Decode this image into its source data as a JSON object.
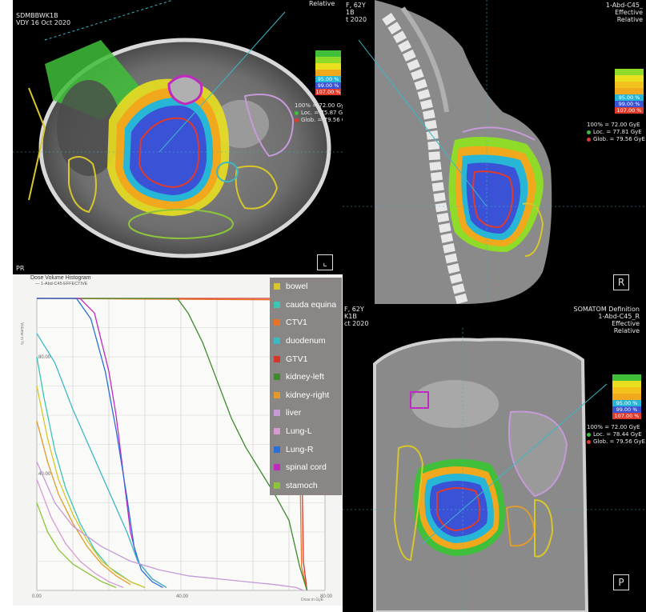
{
  "axial": {
    "overlay_lines": [
      "SDMBBWK1B",
      "VDY 16 Oct 2020"
    ],
    "orient_label": "PR",
    "top_text": "Relative",
    "dose_summary": [
      "100% = 72.00 GyE",
      "Loc. = 75.87 GyE",
      "Glob. = 79.56 GyE"
    ],
    "legend": [
      {
        "label": "",
        "color": "#3fbf3a"
      },
      {
        "label": "",
        "color": "#8edb2a"
      },
      {
        "label": "",
        "color": "#e8df1e"
      },
      {
        "label": "",
        "color": "#f2a81c"
      },
      {
        "label": "95.00 %",
        "color": "#28b6d6"
      },
      {
        "label": "99.00 %",
        "color": "#3a52d6"
      },
      {
        "label": "107.00 %",
        "color": "#e03a2a"
      }
    ]
  },
  "sagittal": {
    "header_left": [
      "F, 62Y",
      "1B",
      "t 2020"
    ],
    "header_right": [
      "1-Abd-C45_",
      "Effective",
      "Relative"
    ],
    "dose_summary": [
      "100% = 72.00 GyE",
      "Loc. = 77.81 GyE",
      "Glob. = 79.56 GyE"
    ],
    "view_label": "R",
    "legend": [
      {
        "label": "",
        "color": "#8edb2a"
      },
      {
        "label": "",
        "color": "#e8df1e"
      },
      {
        "label": "",
        "color": "#f2c11c"
      },
      {
        "label": "",
        "color": "#f2a81c"
      },
      {
        "label": "95.00 %",
        "color": "#28b6d6"
      },
      {
        "label": "99.00 %",
        "color": "#3a52d6"
      },
      {
        "label": "107.00 %",
        "color": "#e03a2a"
      }
    ]
  },
  "coronal": {
    "header_left": [
      "F, 62Y",
      "K1B",
      "ct 2020"
    ],
    "header_right": [
      "SOMATOM Definition",
      "1-Abd-C45_R",
      "Effective",
      "Relative"
    ],
    "dose_summary": [
      "100% = 72.00 GyE",
      "Loc. = 78.44 GyE",
      "Glob. = 79.56 GyE"
    ],
    "view_label": "P",
    "legend": [
      {
        "label": "",
        "color": "#3fbf3a"
      },
      {
        "label": "",
        "color": "#e8df1e"
      },
      {
        "label": "",
        "color": "#f2c11c"
      },
      {
        "label": "",
        "color": "#f2a81c"
      },
      {
        "label": "95.00 %",
        "color": "#28b6d6"
      },
      {
        "label": "99.00 %",
        "color": "#3a52d6"
      },
      {
        "label": "107.00 %",
        "color": "#e03a2a"
      }
    ]
  },
  "dvh": {
    "title": "Dose Volume Histogram",
    "subtitle": "1-Abd-C45 EFFECTIVE",
    "ylabel": "Volume in %",
    "xlabel": "Dose in GyE"
  },
  "roi_legend": [
    {
      "label": "bowel",
      "color": "#d9c62a"
    },
    {
      "label": "cauda equina",
      "color": "#3cc4b4"
    },
    {
      "label": "CTV1",
      "color": "#e8742a"
    },
    {
      "label": "duodenum",
      "color": "#3ab8c4"
    },
    {
      "label": "GTV1",
      "color": "#d8352a"
    },
    {
      "label": "kidney-left",
      "color": "#3d8a2e"
    },
    {
      "label": "kidney-right",
      "color": "#e29a2c"
    },
    {
      "label": "liver",
      "color": "#c59ad8"
    },
    {
      "label": "Lung-L",
      "color": "#d69ad2"
    },
    {
      "label": "Lung-R",
      "color": "#2a6fd8"
    },
    {
      "label": "spinal cord",
      "color": "#c02ac0"
    },
    {
      "label": "stamoch",
      "color": "#8cc43a"
    }
  ],
  "chart_data": {
    "type": "line",
    "title": "Dose Volume Histogram",
    "xlabel": "Dose in GyE",
    "ylabel": "Volume in %",
    "xlim": [
      0,
      80
    ],
    "ylim": [
      0,
      100
    ],
    "x_ticks": [
      "0.00",
      "40.00",
      "80.00"
    ],
    "y_ticks": [
      "40.00",
      "80.00"
    ],
    "series": [
      {
        "name": "GTV1",
        "color": "#d8352a",
        "x": [
          0,
          70,
          72,
          73,
          74,
          75
        ],
        "y": [
          100,
          100,
          99,
          90,
          10,
          0
        ]
      },
      {
        "name": "CTV1",
        "color": "#e8742a",
        "x": [
          0,
          69,
          71,
          72.5,
          73.5,
          75
        ],
        "y": [
          100,
          99.5,
          97,
          80,
          8,
          0
        ]
      },
      {
        "name": "kidney-left",
        "color": "#3d8a2e",
        "x": [
          0,
          39,
          42,
          46,
          50,
          54,
          58,
          62,
          66,
          70,
          73,
          75
        ],
        "y": [
          100,
          100,
          95,
          85,
          72,
          59,
          49,
          41,
          33,
          24,
          8,
          0
        ]
      },
      {
        "name": "spinal cord",
        "color": "#c02ac0",
        "x": [
          0,
          12,
          16,
          20,
          22,
          24,
          26,
          28,
          32,
          36
        ],
        "y": [
          100,
          100,
          95,
          75,
          60,
          40,
          20,
          10,
          4,
          1
        ]
      },
      {
        "name": "Lung-R",
        "color": "#2a6fd8",
        "x": [
          0,
          11,
          15,
          19,
          22,
          25,
          27,
          29,
          32,
          35
        ],
        "y": [
          100,
          100,
          93,
          75,
          55,
          32,
          15,
          7,
          3,
          1
        ]
      },
      {
        "name": "duodenum",
        "color": "#3ab8c4",
        "x": [
          0,
          5,
          10,
          15,
          20,
          25,
          28,
          32,
          36
        ],
        "y": [
          88,
          78,
          62,
          48,
          34,
          20,
          10,
          4,
          1
        ]
      },
      {
        "name": "cauda equina",
        "color": "#3cc4b4",
        "x": [
          0,
          2,
          5,
          8,
          12,
          16,
          20,
          26,
          30
        ],
        "y": [
          80,
          66,
          48,
          35,
          23,
          14,
          8,
          3,
          1
        ]
      },
      {
        "name": "bowel",
        "color": "#d9c62a",
        "x": [
          0,
          3,
          6,
          10,
          14,
          18,
          22,
          26,
          30
        ],
        "y": [
          70,
          52,
          38,
          26,
          17,
          10,
          6,
          3,
          1
        ]
      },
      {
        "name": "kidney-right",
        "color": "#e29a2c",
        "x": [
          0,
          3,
          6,
          10,
          14,
          18,
          22,
          26
        ],
        "y": [
          58,
          44,
          33,
          23,
          15,
          9,
          5,
          2
        ]
      },
      {
        "name": "liver",
        "color": "#c59ad8",
        "x": [
          0,
          5,
          10,
          18,
          26,
          34,
          42,
          50,
          58,
          66,
          72,
          74
        ],
        "y": [
          44,
          30,
          22,
          15,
          10,
          7,
          5,
          4,
          3,
          2,
          1,
          0
        ]
      },
      {
        "name": "Lung-L",
        "color": "#d69ad2",
        "x": [
          0,
          4,
          8,
          12,
          16,
          20,
          24
        ],
        "y": [
          38,
          25,
          16,
          10,
          6,
          3,
          1
        ]
      },
      {
        "name": "stamoch",
        "color": "#8cc43a",
        "x": [
          0,
          3,
          6,
          10,
          14,
          18,
          22
        ],
        "y": [
          30,
          20,
          14,
          9,
          6,
          3,
          1
        ]
      }
    ]
  }
}
